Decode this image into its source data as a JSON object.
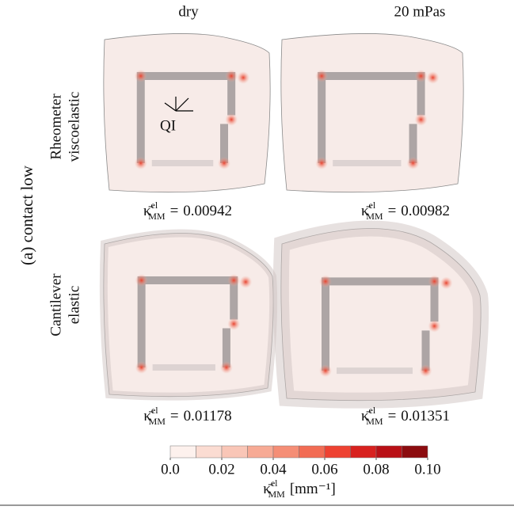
{
  "column_headers": [
    "dry",
    "20 mPas"
  ],
  "group_label": "(a) contact low",
  "row_labels": [
    [
      "Rheometer",
      "viscoelastic"
    ],
    [
      "Cantilever",
      "elastic"
    ]
  ],
  "annotation": "QI",
  "kappa": {
    "symbol": "κ̄",
    "sup": "el",
    "sub": "MM",
    "equals": "="
  },
  "panel_values": [
    [
      0.00942,
      0.00982
    ],
    [
      0.01178,
      0.01351
    ]
  ],
  "colorbar": {
    "colors": [
      "#fdf1ed",
      "#fbdcd2",
      "#f9c6b7",
      "#f7aa95",
      "#f58e76",
      "#f26c54",
      "#ee4232",
      "#d8211f",
      "#b91016",
      "#8c0c0f"
    ],
    "lim": [
      0,
      0.1
    ],
    "ticks": [
      {
        "value": 0,
        "label": "0.0"
      },
      {
        "value": 0.02,
        "label": "0.02"
      },
      {
        "value": 0.04,
        "label": "0.04"
      },
      {
        "value": 0.06,
        "label": "0.06"
      },
      {
        "value": 0.08,
        "label": "0.08"
      },
      {
        "value": 0.1,
        "label": "0.10"
      }
    ],
    "unit": "[mm⁻¹]"
  }
}
